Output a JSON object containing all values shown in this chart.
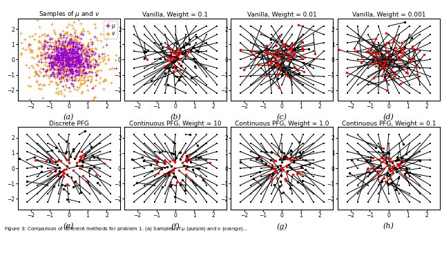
{
  "titles": [
    "Samples of $\\mu$ and $\\nu$",
    "Vanilla, Weight = 0.1",
    "Vanilla, Weight = 0.01",
    "Vanilla, Weight = 0.001",
    "Discrete PFG",
    "Continuous PFG, Weight = 10",
    "Continuous PFG, Weight = 1.0",
    "Continuous PFG, Weight = 0.1"
  ],
  "labels": [
    "(a)",
    "(b)",
    "(c)",
    "(d)",
    "(e)",
    "(f)",
    "(g)",
    "(h)"
  ],
  "xlim": [
    -2.7,
    2.7
  ],
  "ylim": [
    -2.7,
    2.7
  ],
  "xticks": [
    -2,
    -1,
    0,
    1,
    2
  ],
  "yticks": [
    -2,
    -1,
    0,
    1,
    2
  ],
  "mu_color": "#9400D3",
  "nu_color": "#FF8C00",
  "arrow_color": "black",
  "dot_color": "red",
  "n_samples": 600,
  "title_fontsize": 6.5,
  "label_fontsize": 8,
  "tick_fontsize": 5.5,
  "caption": "Figure 3: Comparison of different methods for problem 1. (a) Samples of $\\mu$ (purple) and $\\nu$ (orange)..."
}
